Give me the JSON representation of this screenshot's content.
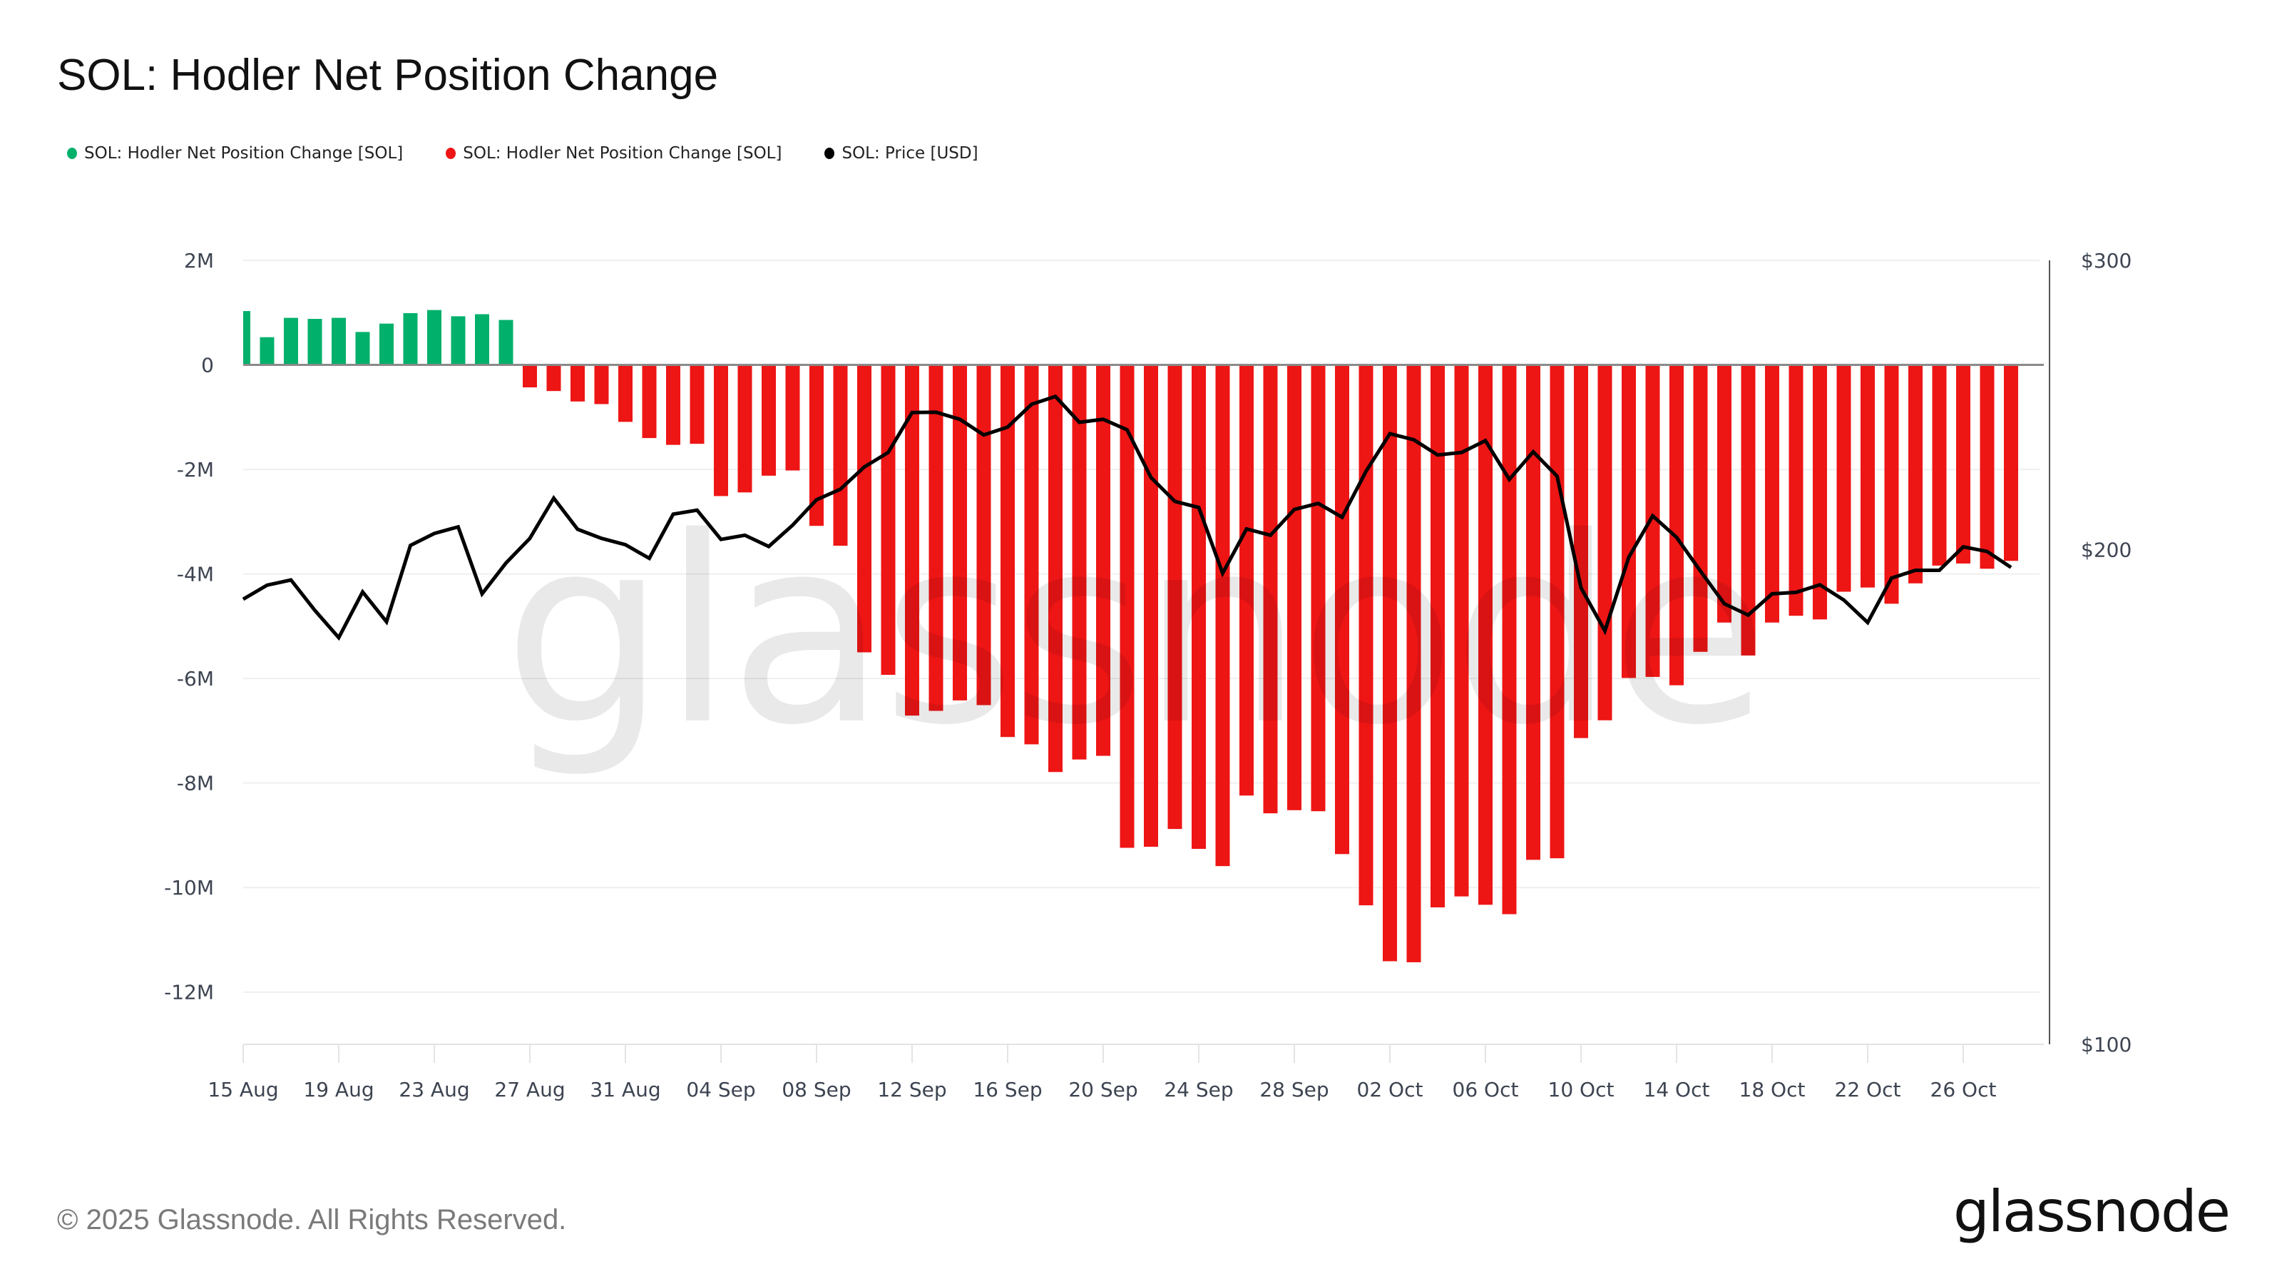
{
  "header": {
    "title": "SOL: Hodler Net Position Change"
  },
  "legend": [
    {
      "label": "SOL: Hodler Net Position Change [SOL]",
      "color": "#00b06b",
      "icon": "circle-dot-icon"
    },
    {
      "label": "SOL: Hodler Net Position Change [SOL]",
      "color": "#ee1515",
      "icon": "circle-dot-icon"
    },
    {
      "label": "SOL: Price [USD]",
      "color": "#000000",
      "icon": "circle-dot-icon"
    }
  ],
  "footer": {
    "copyright": "© 2025 Glassnode. All Rights Reserved.",
    "logo": "glassnode"
  },
  "watermark": "glassnode",
  "colors": {
    "positive": "#00b06b",
    "negative": "#ee1515",
    "price_line": "#000000",
    "grid": "#efefef",
    "axis_text": "#3d4451"
  },
  "chart_data": {
    "type": "bar+line",
    "title": "SOL: Hodler Net Position Change",
    "xlabel": "",
    "ylabel": "Hodler Net Position Change [SOL]",
    "y2label": "Price [USD]",
    "ylim": [
      -13000000,
      2000000
    ],
    "y_ticks": [
      2000000,
      0,
      -2000000,
      -4000000,
      -6000000,
      -8000000,
      -10000000,
      -12000000
    ],
    "y_tick_labels": [
      "2M",
      "0",
      "-2M",
      "-4M",
      "-6M",
      "-8M",
      "-10M",
      "-12M"
    ],
    "y2_scale": "log",
    "y2lim": [
      100,
      300
    ],
    "y2_ticks": [
      300,
      200,
      100
    ],
    "y2_tick_labels": [
      "$300",
      "$200",
      "$100"
    ],
    "x_start": "2025-08-15",
    "x_end": "2025-10-28",
    "x_tick_labels": [
      "15 Aug",
      "19 Aug",
      "23 Aug",
      "27 Aug",
      "31 Aug",
      "04 Sep",
      "08 Sep",
      "12 Sep",
      "16 Sep",
      "20 Sep",
      "24 Sep",
      "28 Sep",
      "02 Oct",
      "06 Oct",
      "10 Oct",
      "14 Oct",
      "18 Oct",
      "22 Oct",
      "26 Oct"
    ],
    "x_tick_every_days": 4,
    "grid": true,
    "legend_position": "top-left",
    "series": [
      {
        "name": "SOL: Hodler Net Position Change [SOL]",
        "type": "bar",
        "unit": "M SOL",
        "positive_color": "#00b06b",
        "negative_color": "#ee1515",
        "values": [
          1.03,
          0.53,
          0.9,
          0.88,
          0.9,
          0.63,
          0.79,
          0.99,
          1.05,
          0.93,
          0.97,
          0.86,
          -0.43,
          -0.5,
          -0.7,
          -0.75,
          -1.09,
          -1.4,
          -1.53,
          -1.51,
          -2.51,
          -2.44,
          -2.12,
          -2.02,
          -3.08,
          -3.46,
          -5.5,
          -5.93,
          -6.71,
          -6.62,
          -6.42,
          -6.51,
          -7.12,
          -7.26,
          -7.79,
          -7.55,
          -7.48,
          -9.24,
          -9.22,
          -8.88,
          -9.26,
          -9.59,
          -8.24,
          -8.58,
          -8.52,
          -8.54,
          -9.36,
          -10.34,
          -11.41,
          -11.43,
          -10.38,
          -10.17,
          -10.33,
          -10.51,
          -9.47,
          -9.44,
          -7.14,
          -6.8,
          -5.99,
          -5.97,
          -6.13,
          -5.49,
          -4.93,
          -5.56,
          -4.93,
          -4.8,
          -4.87,
          -4.34,
          -4.26,
          -4.57,
          -4.18,
          -3.84,
          -3.8,
          -3.9,
          -3.75
        ]
      },
      {
        "name": "SOL: Price [USD]",
        "type": "line",
        "axis": "right",
        "color": "#000000",
        "values": [
          186.6,
          190.3,
          191.7,
          183.7,
          176.8,
          188.5,
          180.8,
          201.2,
          204.6,
          206.5,
          188.0,
          196.3,
          203.2,
          215.0,
          205.8,
          203.2,
          201.4,
          197.6,
          210.2,
          211.4,
          202.9,
          204.1,
          200.9,
          207.0,
          214.5,
          217.7,
          224.6,
          229.2,
          242.4,
          242.5,
          240.1,
          234.9,
          237.5,
          245.2,
          247.9,
          239.1,
          240.1,
          236.6,
          221.3,
          214.0,
          212.2,
          193.5,
          205.9,
          204.1,
          211.6,
          213.4,
          209.3,
          223.2,
          235.3,
          233.3,
          228.4,
          229.2,
          233.0,
          220.7,
          229.4,
          221.7,
          189.6,
          178.5,
          197.9,
          209.7,
          203.5,
          194.1,
          185.4,
          182.5,
          188.0,
          188.4,
          190.4,
          186.4,
          180.6,
          192.2,
          194.3,
          194.3,
          200.8,
          199.5,
          195.1
        ]
      }
    ]
  }
}
